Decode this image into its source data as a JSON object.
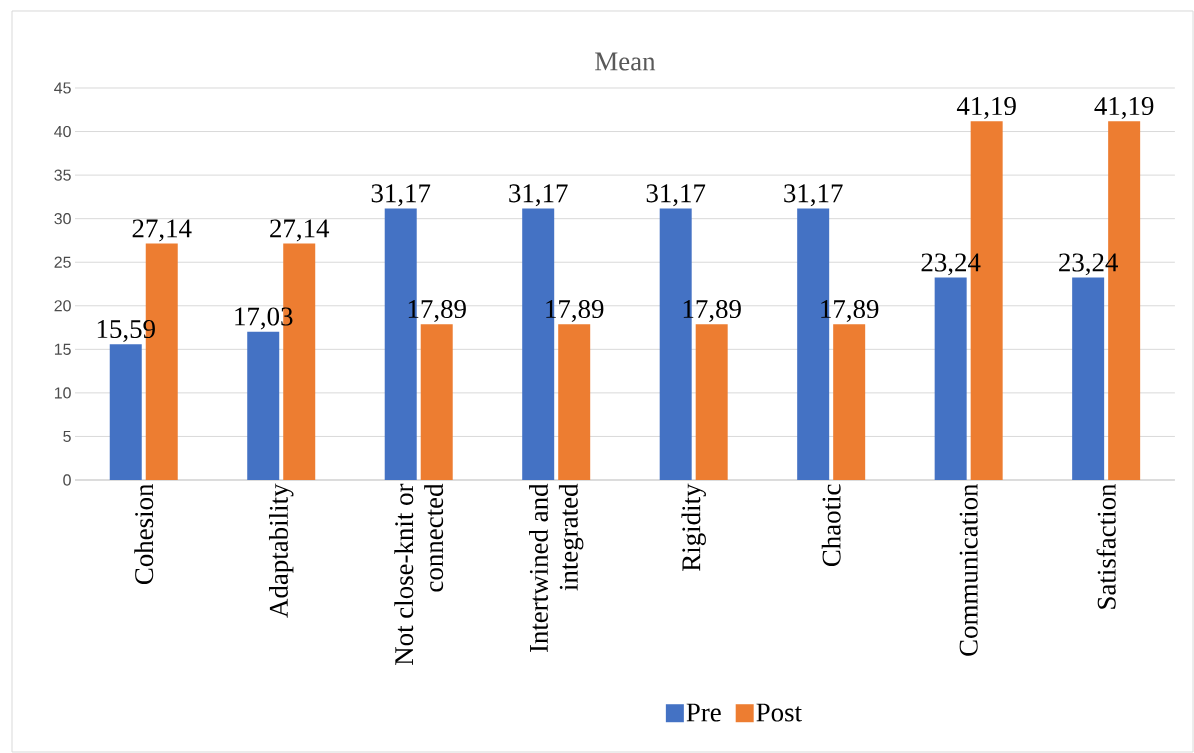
{
  "chart_data": {
    "type": "bar",
    "title": "Mean",
    "categories": [
      "Cohesion",
      "Adaptability",
      "Not close-knit or connected",
      "Intertwined and integrated",
      "Rigidity",
      "Chaotic",
      "Communication",
      "Satisfaction"
    ],
    "series": [
      {
        "name": "Pre",
        "color": "#4472c4",
        "values": [
          15.59,
          17.03,
          31.17,
          31.17,
          31.17,
          31.17,
          23.24,
          23.24
        ],
        "value_labels": [
          "15,59",
          "17,03",
          "31,17",
          "31,17",
          "31,17",
          "31,17",
          "23,24",
          "23,24"
        ]
      },
      {
        "name": "Post",
        "color": "#ed7d31",
        "values": [
          27.14,
          27.14,
          17.89,
          17.89,
          17.89,
          17.89,
          41.19,
          41.19
        ],
        "value_labels": [
          "27,14",
          "27,14",
          "17,89",
          "17,89",
          "17,89",
          "17,89",
          "41,19",
          "41,19"
        ]
      }
    ],
    "ylim": [
      0,
      45
    ],
    "yticks": [
      0,
      5,
      10,
      15,
      20,
      25,
      30,
      35,
      40,
      45
    ],
    "grid": "y",
    "legend": "bottom"
  }
}
